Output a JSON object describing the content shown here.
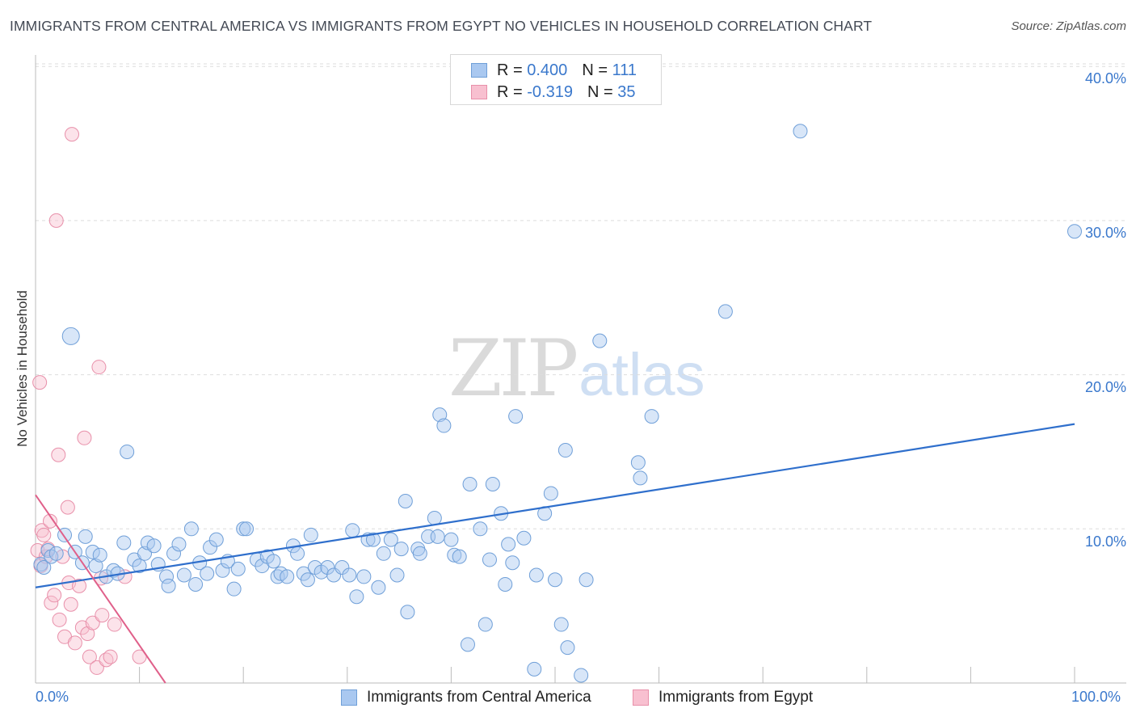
{
  "title": "IMMIGRANTS FROM CENTRAL AMERICA VS IMMIGRANTS FROM EGYPT NO VEHICLES IN HOUSEHOLD CORRELATION CHART",
  "source": "Source: ZipAtlas.com",
  "watermark": {
    "zip": "ZIP",
    "atlas": "atlas"
  },
  "legend": {
    "rows": [
      {
        "r_label": "R = ",
        "r_value": "0.400",
        "n_label": "N = ",
        "n_value": "111",
        "color": "#a9c8f0",
        "border": "#6f9fd8"
      },
      {
        "r_label": "R = ",
        "r_value": "-0.319",
        "n_label": "N = ",
        "n_value": "35",
        "color": "#f8c0d0",
        "border": "#e890aa"
      }
    ]
  },
  "bottom_legend": {
    "series1": "Immigrants from Central America",
    "series2": "Immigrants from Egypt"
  },
  "colors": {
    "blue_fill": "rgba(169,200,240,0.45)",
    "blue_stroke": "#6f9fd8",
    "blue_line": "#2f6fcc",
    "pink_fill": "rgba(248,192,208,0.45)",
    "pink_stroke": "#e890aa",
    "pink_line": "#e0608a",
    "grid": "#dddddd",
    "tick_text": "#3a78cc"
  },
  "chart_data": {
    "type": "scatter",
    "title": "IMMIGRANTS FROM CENTRAL AMERICA VS IMMIGRANTS FROM EGYPT NO VEHICLES IN HOUSEHOLD CORRELATION CHART",
    "xlabel": "",
    "ylabel": "No Vehicles in Household",
    "xlim": [
      0,
      100
    ],
    "ylim": [
      0,
      40
    ],
    "x_tick_labels": [
      "0.0%",
      "100.0%"
    ],
    "y_ticks": [
      10,
      20,
      30,
      40
    ],
    "y_tick_labels": [
      "10.0%",
      "20.0%",
      "30.0%",
      "40.0%"
    ],
    "grid": "horizontal dashed",
    "legend_placement": "top-center",
    "series": [
      {
        "name": "Immigrants from Central America",
        "trend": {
          "x": [
            0,
            100
          ],
          "y": [
            6.2,
            16.8
          ]
        },
        "points": [
          [
            0.5,
            7.7
          ],
          [
            0.8,
            7.5
          ],
          [
            1.2,
            8.6
          ],
          [
            1.5,
            8.2
          ],
          [
            2.0,
            8.4
          ],
          [
            2.8,
            9.6
          ],
          [
            3.4,
            22.5
          ],
          [
            3.8,
            8.5
          ],
          [
            4.5,
            7.8
          ],
          [
            4.8,
            9.5
          ],
          [
            5.5,
            8.5
          ],
          [
            5.8,
            7.6
          ],
          [
            6.2,
            8.3
          ],
          [
            6.8,
            6.9
          ],
          [
            7.5,
            7.3
          ],
          [
            7.9,
            7.1
          ],
          [
            8.5,
            9.1
          ],
          [
            8.8,
            15.0
          ],
          [
            9.5,
            8.0
          ],
          [
            10.0,
            7.6
          ],
          [
            10.5,
            8.4
          ],
          [
            10.8,
            9.1
          ],
          [
            11.4,
            8.9
          ],
          [
            11.8,
            7.7
          ],
          [
            12.6,
            6.9
          ],
          [
            12.8,
            6.3
          ],
          [
            13.3,
            8.4
          ],
          [
            13.8,
            9.0
          ],
          [
            14.3,
            7.0
          ],
          [
            15.0,
            10.0
          ],
          [
            15.4,
            6.4
          ],
          [
            15.8,
            7.8
          ],
          [
            16.5,
            7.1
          ],
          [
            16.8,
            8.8
          ],
          [
            17.4,
            9.3
          ],
          [
            18.0,
            7.3
          ],
          [
            18.5,
            7.9
          ],
          [
            19.1,
            6.1
          ],
          [
            19.5,
            7.4
          ],
          [
            20.0,
            10.0
          ],
          [
            20.3,
            10.0
          ],
          [
            21.3,
            8.0
          ],
          [
            21.8,
            7.6
          ],
          [
            22.3,
            8.2
          ],
          [
            22.9,
            7.9
          ],
          [
            23.3,
            6.9
          ],
          [
            23.6,
            7.1
          ],
          [
            24.2,
            6.9
          ],
          [
            24.8,
            8.9
          ],
          [
            25.2,
            8.4
          ],
          [
            25.8,
            7.1
          ],
          [
            26.2,
            6.7
          ],
          [
            26.5,
            9.6
          ],
          [
            26.9,
            7.5
          ],
          [
            27.5,
            7.2
          ],
          [
            28.1,
            7.5
          ],
          [
            28.7,
            7.0
          ],
          [
            29.5,
            7.5
          ],
          [
            30.2,
            7.0
          ],
          [
            30.5,
            9.9
          ],
          [
            30.9,
            5.6
          ],
          [
            31.6,
            6.9
          ],
          [
            32.0,
            9.3
          ],
          [
            32.5,
            9.3
          ],
          [
            33.0,
            6.2
          ],
          [
            33.5,
            8.4
          ],
          [
            34.2,
            9.3
          ],
          [
            34.8,
            7.0
          ],
          [
            35.2,
            8.7
          ],
          [
            35.6,
            11.8
          ],
          [
            35.8,
            4.6
          ],
          [
            36.8,
            8.7
          ],
          [
            37.0,
            8.4
          ],
          [
            37.8,
            9.5
          ],
          [
            38.4,
            10.7
          ],
          [
            38.7,
            9.5
          ],
          [
            38.9,
            17.4
          ],
          [
            39.3,
            16.7
          ],
          [
            40.0,
            9.3
          ],
          [
            40.3,
            8.3
          ],
          [
            40.8,
            8.2
          ],
          [
            41.6,
            2.5
          ],
          [
            41.8,
            12.9
          ],
          [
            42.8,
            10.0
          ],
          [
            43.3,
            3.8
          ],
          [
            43.7,
            8.0
          ],
          [
            44.0,
            12.9
          ],
          [
            44.8,
            11.0
          ],
          [
            45.2,
            6.4
          ],
          [
            45.5,
            9.0
          ],
          [
            45.9,
            7.8
          ],
          [
            46.2,
            17.3
          ],
          [
            47.0,
            9.4
          ],
          [
            48.0,
            0.9
          ],
          [
            48.2,
            7.0
          ],
          [
            49.0,
            11.0
          ],
          [
            49.6,
            12.3
          ],
          [
            50.0,
            6.7
          ],
          [
            50.6,
            3.8
          ],
          [
            51.0,
            15.1
          ],
          [
            51.2,
            2.3
          ],
          [
            52.5,
            0.5
          ],
          [
            53.0,
            6.7
          ],
          [
            54.3,
            22.2
          ],
          [
            58.0,
            14.3
          ],
          [
            58.2,
            13.3
          ],
          [
            59.3,
            17.3
          ],
          [
            66.4,
            24.1
          ],
          [
            73.6,
            35.8
          ],
          [
            100.0,
            29.3
          ]
        ]
      },
      {
        "name": "Immigrants from Egypt",
        "trend": {
          "x": [
            0,
            12.5
          ],
          "y": [
            12.2,
            0
          ]
        },
        "points": [
          [
            0.2,
            8.6
          ],
          [
            0.4,
            19.5
          ],
          [
            0.5,
            7.6
          ],
          [
            0.6,
            9.9
          ],
          [
            0.8,
            9.6
          ],
          [
            1.0,
            8.2
          ],
          [
            1.2,
            8.7
          ],
          [
            1.4,
            10.5
          ],
          [
            1.5,
            5.2
          ],
          [
            1.8,
            5.7
          ],
          [
            2.0,
            30.0
          ],
          [
            2.2,
            14.8
          ],
          [
            2.3,
            4.1
          ],
          [
            2.6,
            8.2
          ],
          [
            2.8,
            3.0
          ],
          [
            3.1,
            11.4
          ],
          [
            3.2,
            6.5
          ],
          [
            3.4,
            5.1
          ],
          [
            3.5,
            35.6
          ],
          [
            3.8,
            2.6
          ],
          [
            4.2,
            6.3
          ],
          [
            4.5,
            3.6
          ],
          [
            4.7,
            15.9
          ],
          [
            5.0,
            3.2
          ],
          [
            5.2,
            1.7
          ],
          [
            5.5,
            3.9
          ],
          [
            5.9,
            1.0
          ],
          [
            6.1,
            20.5
          ],
          [
            6.3,
            6.8
          ],
          [
            6.4,
            4.4
          ],
          [
            6.8,
            1.5
          ],
          [
            7.2,
            1.7
          ],
          [
            7.6,
            3.8
          ],
          [
            8.6,
            6.9
          ],
          [
            10.0,
            1.7
          ]
        ]
      }
    ]
  }
}
